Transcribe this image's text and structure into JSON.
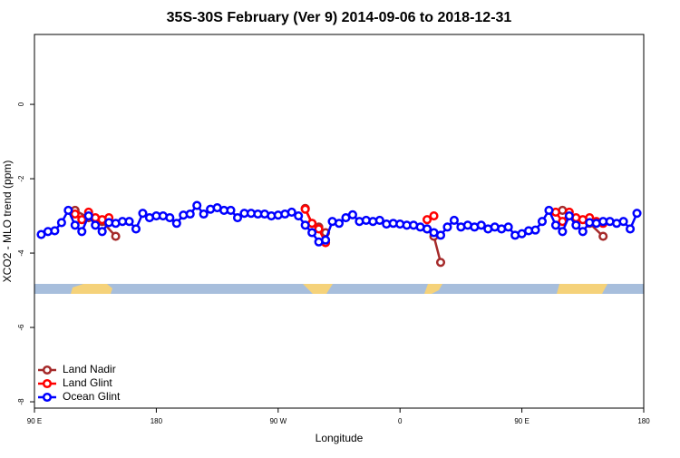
{
  "chart_data": {
    "type": "line",
    "title": "35S-30S February (Ver 9)   2014-09-06 to 2018-12-31",
    "x_label": "Longitude",
    "y_label": "XCO2 - MLO trend (ppm)",
    "xlim": [
      90,
      540
    ],
    "xticks": [
      {
        "value": 90,
        "label": "90 E"
      },
      180,
      {
        "value": 270,
        "label": "90 W"
      },
      {
        "value": 360,
        "label": "0"
      },
      {
        "value": 450,
        "label": "90 E"
      },
      {
        "value": 540,
        "label": "180"
      }
    ],
    "ylim": [
      -8.17,
      1.88
    ],
    "yticks": [
      0,
      -2,
      -4,
      -6,
      -8
    ],
    "legend": "bottom-left",
    "series": [
      {
        "name": "Land Nadir",
        "color": "#a52a2a",
        "x": [
          120,
          130,
          140,
          150,
          155,
          290,
          295,
          300,
          305,
          370,
          380,
          385,
          390,
          470,
          480,
          490,
          500,
          510
        ],
        "values": [
          -2.85,
          -3.05,
          -3.15,
          -3.55,
          null,
          -2.8,
          -3.2,
          -3.3,
          -3.45,
          null,
          -3.35,
          -3.55,
          -4.25,
          null,
          -2.85,
          -3.1,
          -3.2,
          -3.55
        ]
      },
      {
        "name": "Land Glint",
        "color": "#ff0000",
        "x": [
          120,
          125,
          130,
          135,
          140,
          145,
          155,
          290,
          295,
          300,
          305,
          370,
          380,
          385,
          470,
          475,
          480,
          485,
          490,
          495,
          500,
          505,
          510
        ],
        "values": [
          -2.95,
          -3.1,
          -2.9,
          -3.05,
          -3.1,
          -3.05,
          null,
          -2.82,
          -3.2,
          -3.35,
          -3.72,
          null,
          -3.1,
          -3.0,
          null,
          -2.9,
          -3.15,
          -2.9,
          -3.05,
          -3.1,
          -3.05,
          -3.15,
          -3.2
        ]
      },
      {
        "name": "Ocean Glint",
        "color": "#0000ff",
        "x": [
          95,
          100,
          105,
          110,
          115,
          120,
          125,
          130,
          135,
          140,
          145,
          150,
          155,
          160,
          165,
          170,
          175,
          180,
          185,
          190,
          195,
          200,
          205,
          210,
          215,
          220,
          225,
          230,
          235,
          240,
          245,
          250,
          255,
          260,
          265,
          270,
          275,
          280,
          285,
          290,
          295,
          300,
          305,
          310,
          315,
          320,
          325,
          330,
          335,
          340,
          345,
          350,
          355,
          360,
          365,
          370,
          375,
          380,
          385,
          390,
          395,
          400,
          405,
          410,
          415,
          420,
          425,
          430,
          435,
          440,
          445,
          450,
          455,
          460,
          465,
          470,
          475,
          480,
          485,
          490,
          495,
          500,
          505,
          510,
          515,
          520,
          525,
          530,
          535
        ],
        "values": [
          -3.5,
          -3.42,
          -3.4,
          -3.18,
          -2.85,
          -3.25,
          -3.42,
          -3.0,
          -3.25,
          -3.42,
          -3.18,
          -3.2,
          -3.15,
          -3.15,
          -3.35,
          -2.93,
          -3.05,
          -3.0,
          -3.0,
          -3.05,
          -3.2,
          -2.98,
          -2.95,
          -2.72,
          -2.95,
          -2.82,
          -2.78,
          -2.85,
          -2.85,
          -3.05,
          -2.93,
          -2.93,
          -2.95,
          -2.95,
          -3.0,
          -2.98,
          -2.95,
          -2.9,
          -3.0,
          -3.25,
          -3.45,
          -3.7,
          -3.65,
          -3.15,
          -3.2,
          -3.05,
          -2.97,
          -3.15,
          -3.12,
          -3.15,
          -3.12,
          -3.22,
          -3.2,
          -3.22,
          -3.25,
          -3.25,
          -3.3,
          -3.35,
          -3.45,
          -3.52,
          -3.3,
          -3.12,
          -3.3,
          -3.25,
          -3.3,
          -3.25,
          -3.35,
          -3.3,
          -3.35,
          -3.3,
          -3.52,
          -3.48,
          -3.4,
          -3.38,
          -3.15,
          -2.85,
          -3.25,
          -3.42,
          -3.0,
          -3.25,
          -3.42,
          -3.18,
          -3.2,
          -3.15,
          -3.15,
          -3.2,
          -3.15,
          -3.35,
          -2.93
        ]
      }
    ]
  }
}
